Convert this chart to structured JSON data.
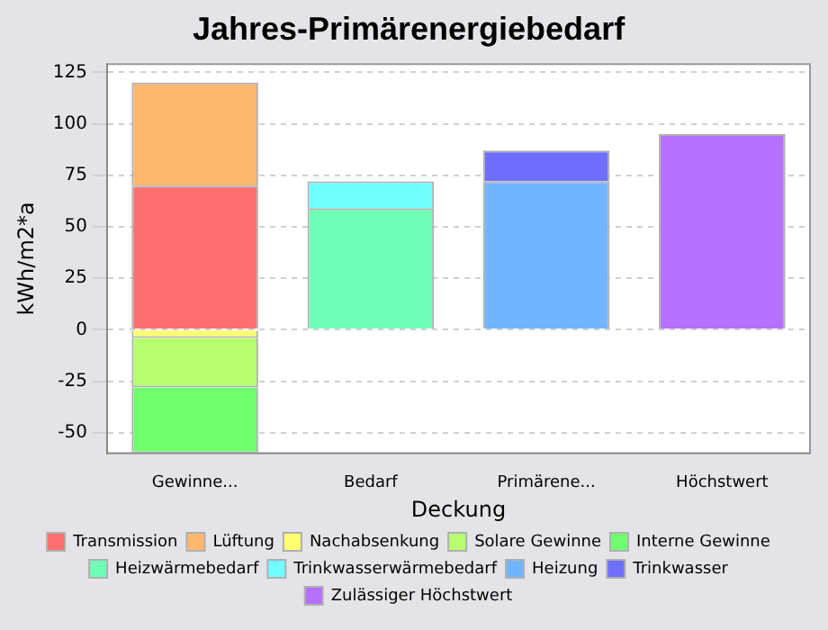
{
  "chart_data": {
    "type": "bar",
    "title": "Jahres-Primärenergiebedarf",
    "xlabel": "Deckung",
    "ylabel": "kWh/m2*a",
    "categories": [
      "Gewinne...",
      "Bedarf",
      "Primärene...",
      "Höchstwert"
    ],
    "stacked": true,
    "series": [
      {
        "name": "Transmission",
        "color": "#ff6f6f",
        "values": [
          70,
          null,
          null,
          null
        ]
      },
      {
        "name": "Lüftung",
        "color": "#ffb66f",
        "values": [
          50,
          null,
          null,
          null
        ]
      },
      {
        "name": "Nachabsenkung",
        "color": "#ffff6f",
        "values": [
          -4,
          null,
          null,
          null
        ]
      },
      {
        "name": "Solare Gewinne",
        "color": "#b6ff6f",
        "values": [
          -24,
          null,
          null,
          null
        ]
      },
      {
        "name": "Interne Gewinne",
        "color": "#6fff6f",
        "values": [
          -32,
          null,
          null,
          null
        ]
      },
      {
        "name": "Heizwärmebedarf",
        "color": "#6fffb6",
        "values": [
          null,
          59,
          null,
          null
        ]
      },
      {
        "name": "Trinkwasserwärmebedarf",
        "color": "#6fffff",
        "values": [
          null,
          13,
          null,
          null
        ]
      },
      {
        "name": "Heizung",
        "color": "#6fb6ff",
        "values": [
          null,
          null,
          72,
          null
        ]
      },
      {
        "name": "Trinkwasser",
        "color": "#6f6fff",
        "values": [
          null,
          null,
          15,
          null
        ]
      },
      {
        "name": "Zulässiger Höchstwert",
        "color": "#b66fff",
        "values": [
          null,
          null,
          null,
          95
        ]
      }
    ],
    "ylim": [
      -60,
      129
    ],
    "yticks": [
      -50,
      -25,
      0,
      25,
      50,
      75,
      100,
      125
    ],
    "grid": "y",
    "legend": "bottom"
  }
}
